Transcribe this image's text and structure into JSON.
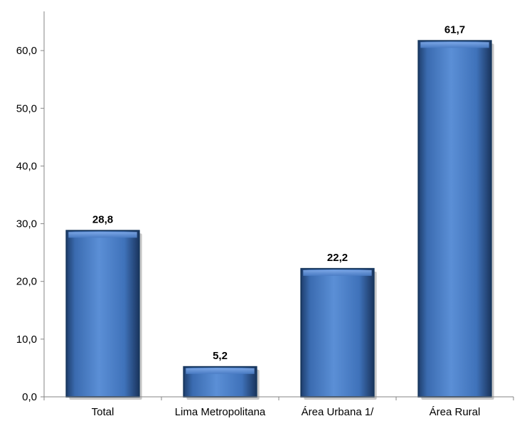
{
  "chart_data": {
    "type": "bar",
    "categories": [
      "Total",
      "Lima Metropolitana",
      "Área Urbana 1/",
      "Área Rural"
    ],
    "values": [
      28.8,
      5.2,
      22.2,
      61.7
    ],
    "value_labels": [
      "28,8",
      "5,2",
      "22,2",
      "61,7"
    ],
    "y_ticks": [
      "0,0",
      "10,0",
      "20,0",
      "30,0",
      "40,0",
      "50,0",
      "60,0"
    ],
    "y_tick_values": [
      0,
      10,
      20,
      30,
      40,
      50,
      60
    ],
    "ylim": [
      0,
      66.3
    ],
    "title": "",
    "xlabel": "",
    "ylabel": "",
    "grid": false,
    "legend": "none",
    "bar_color": "#4F81BD",
    "bar_color_dark": "#17375E"
  }
}
